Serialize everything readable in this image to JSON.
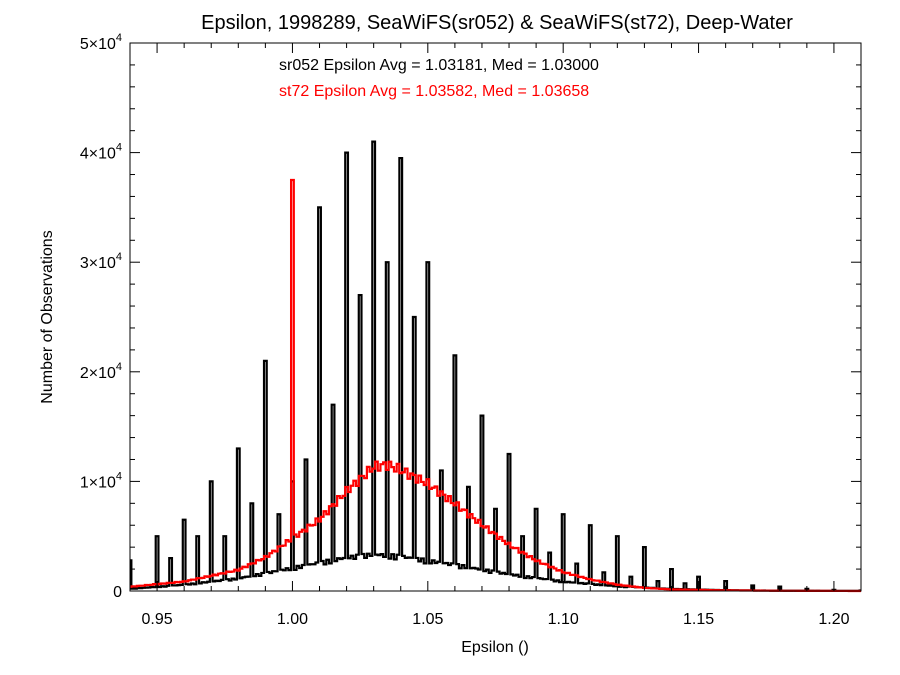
{
  "chart_data": {
    "type": "histogram",
    "title": "Epsilon, 1998289, SeaWiFS(sr052) & SeaWiFS(st72), Deep-Water",
    "xlabel": "Epsilon ()",
    "ylabel": "Number of Observations",
    "xlim": [
      0.94,
      1.21
    ],
    "ylim": [
      0,
      50000
    ],
    "xticks": [
      0.95,
      1.0,
      1.05,
      1.1,
      1.15,
      1.2
    ],
    "xtick_labels": [
      "0.95",
      "1.00",
      "1.05",
      "1.10",
      "1.15",
      "1.20"
    ],
    "yticks": [
      {
        "value": 0,
        "mant": "0",
        "exp": ""
      },
      {
        "value": 10000,
        "mant": "1×10",
        "exp": "4"
      },
      {
        "value": 20000,
        "mant": "2×10",
        "exp": "4"
      },
      {
        "value": 30000,
        "mant": "3×10",
        "exp": "4"
      },
      {
        "value": 40000,
        "mant": "4×10",
        "exp": "4"
      },
      {
        "value": 50000,
        "mant": "5×10",
        "exp": "4"
      }
    ],
    "grid": false,
    "bin_width": 0.001,
    "annotations": [
      {
        "text": "sr052 Epsilon Avg = 1.03181, Med = 1.03000",
        "color": "#000000"
      },
      {
        "text": "st72 Epsilon Avg = 1.03582, Med = 1.03658",
        "color": "#ff0000"
      }
    ],
    "series": [
      {
        "color": "#000000",
        "peak_bins": [
          [
            0.94,
            2800
          ],
          [
            0.95,
            5000
          ],
          [
            0.96,
            6500
          ],
          [
            0.97,
            10000
          ],
          [
            0.98,
            13000
          ],
          [
            0.99,
            21000
          ],
          [
            1.0,
            10000
          ],
          [
            1.01,
            35000
          ],
          [
            1.02,
            40000
          ],
          [
            1.03,
            41000
          ],
          [
            1.04,
            39500
          ],
          [
            1.05,
            30000
          ],
          [
            1.06,
            21500
          ],
          [
            1.07,
            16000
          ],
          [
            1.08,
            12500
          ],
          [
            1.09,
            7500
          ],
          [
            1.1,
            7000
          ],
          [
            1.11,
            6000
          ],
          [
            1.12,
            5000
          ],
          [
            1.13,
            4000
          ],
          [
            1.14,
            2000
          ],
          [
            1.15,
            1300
          ],
          [
            1.16,
            900
          ],
          [
            1.17,
            500
          ],
          [
            1.18,
            400
          ],
          [
            1.19,
            200
          ],
          [
            1.2,
            100
          ],
          [
            1.21,
            50
          ]
        ],
        "secondary_bins": [
          [
            0.955,
            3000
          ],
          [
            0.965,
            5000
          ],
          [
            0.975,
            5000
          ],
          [
            0.985,
            8000
          ],
          [
            0.995,
            7000
          ],
          [
            1.005,
            12000
          ],
          [
            1.015,
            17000
          ],
          [
            1.025,
            27000
          ],
          [
            1.035,
            30000
          ],
          [
            1.045,
            25000
          ],
          [
            1.055,
            11000
          ],
          [
            1.065,
            9500
          ],
          [
            1.075,
            7500
          ],
          [
            1.085,
            5000
          ],
          [
            1.095,
            3500
          ],
          [
            1.105,
            2500
          ],
          [
            1.115,
            1700
          ],
          [
            1.125,
            1300
          ],
          [
            1.135,
            900
          ],
          [
            1.145,
            700
          ]
        ],
        "background_curve": [
          [
            0.94,
            200
          ],
          [
            0.96,
            600
          ],
          [
            0.98,
            1200
          ],
          [
            1.0,
            2200
          ],
          [
            1.02,
            3200
          ],
          [
            1.03,
            3500
          ],
          [
            1.04,
            3300
          ],
          [
            1.06,
            2500
          ],
          [
            1.08,
            1600
          ],
          [
            1.1,
            900
          ],
          [
            1.12,
            450
          ],
          [
            1.14,
            200
          ],
          [
            1.16,
            80
          ],
          [
            1.18,
            30
          ],
          [
            1.21,
            10
          ]
        ]
      },
      {
        "color": "#ff0000",
        "curve": [
          [
            0.94,
            400
          ],
          [
            0.96,
            900
          ],
          [
            0.98,
            2000
          ],
          [
            0.99,
            3200
          ],
          [
            1.0,
            5000
          ],
          [
            1.01,
            6800
          ],
          [
            1.02,
            9500
          ],
          [
            1.03,
            11800
          ],
          [
            1.035,
            12000
          ],
          [
            1.04,
            11500
          ],
          [
            1.05,
            10200
          ],
          [
            1.06,
            8300
          ],
          [
            1.07,
            6300
          ],
          [
            1.08,
            4400
          ],
          [
            1.09,
            2900
          ],
          [
            1.1,
            1800
          ],
          [
            1.11,
            1100
          ],
          [
            1.12,
            600
          ],
          [
            1.13,
            300
          ],
          [
            1.14,
            150
          ],
          [
            1.16,
            60
          ],
          [
            1.18,
            20
          ],
          [
            1.21,
            0
          ]
        ],
        "spike": [
          1.0,
          37500
        ]
      }
    ]
  }
}
